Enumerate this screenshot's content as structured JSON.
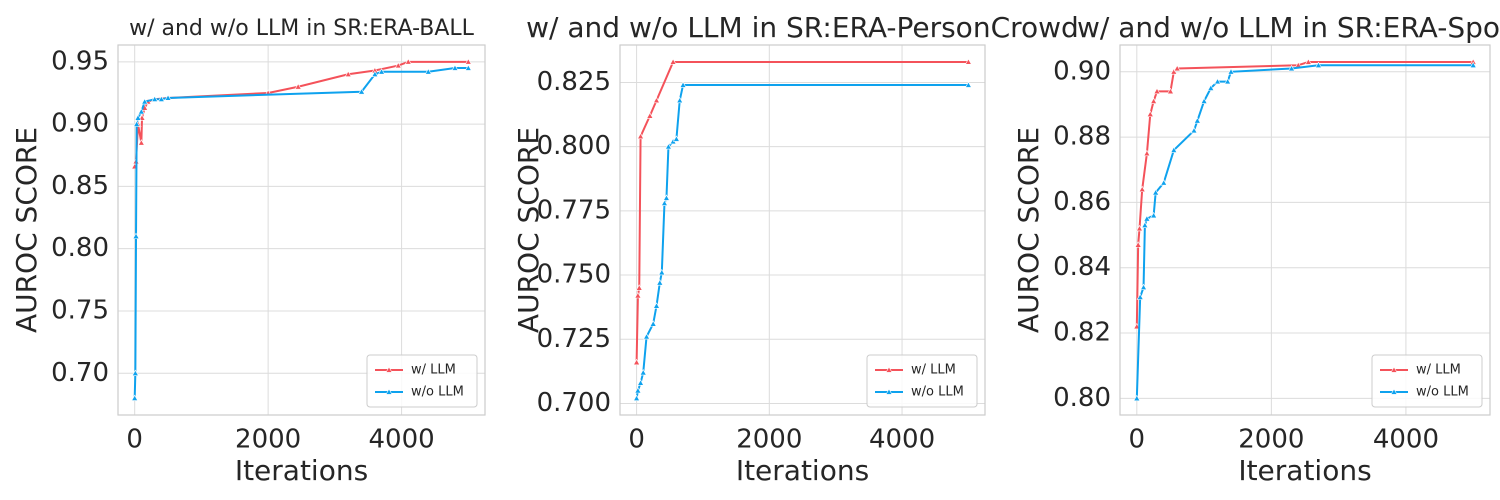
{
  "chart_data": [
    {
      "type": "line",
      "title": "w/ and w/o LLM in SR:ERA-BALL",
      "xlabel": "Iterations",
      "ylabel": "AUROC SCORE",
      "xlim": [
        -250,
        5250
      ],
      "xticks": [
        0,
        2000,
        4000
      ],
      "ylim": [
        0.6665,
        0.9635
      ],
      "yticks": [
        {
          "value": 0.7,
          "label": "0.70"
        },
        0.75,
        {
          "value": 0.8,
          "label": "0.80"
        },
        0.85,
        {
          "value": 0.9,
          "label": "0.90"
        },
        0.95
      ],
      "grid": true,
      "legend": "lower right",
      "series": [
        {
          "name": "w/ LLM",
          "color": "#f4525a",
          "x": [
            0,
            20,
            50,
            100,
            110,
            150,
            200,
            300,
            500,
            2000,
            2450,
            3200,
            3600,
            3950,
            4100,
            5000
          ],
          "values": [
            0.866,
            0.87,
            0.9,
            0.885,
            0.905,
            0.913,
            0.918,
            0.92,
            0.921,
            0.925,
            0.93,
            0.94,
            0.943,
            0.947,
            0.95,
            0.95
          ]
        },
        {
          "name": "w/o LLM",
          "color": "#0ea2ee",
          "x": [
            0,
            10,
            20,
            30,
            50,
            100,
            150,
            300,
            400,
            500,
            3400,
            3600,
            3700,
            4400,
            4800,
            5000
          ],
          "values": [
            0.68,
            0.7,
            0.81,
            0.9,
            0.905,
            0.91,
            0.918,
            0.92,
            0.92,
            0.921,
            0.926,
            0.94,
            0.942,
            0.942,
            0.945,
            0.945
          ]
        }
      ]
    },
    {
      "type": "line",
      "title": "w/ and w/o LLM in SR:ERA-PersonCrowd",
      "xlabel": "Iterations",
      "ylabel": "AUROC SCORE",
      "xlim": [
        -250,
        5250
      ],
      "xticks": [
        0,
        2000,
        4000
      ],
      "ylim": [
        0.6955,
        0.8396
      ],
      "yticks": [
        {
          "value": 0.7,
          "label": "0.700"
        },
        0.725,
        {
          "value": 0.75,
          "label": "0.750"
        },
        0.775,
        {
          "value": 0.8,
          "label": "0.800"
        },
        0.825
      ],
      "grid": true,
      "legend": "lower right",
      "series": [
        {
          "name": "w/ LLM",
          "color": "#f4525a",
          "x": [
            0,
            20,
            40,
            60,
            200,
            300,
            550,
            5000
          ],
          "values": [
            0.716,
            0.742,
            0.745,
            0.804,
            0.812,
            0.818,
            0.833,
            0.833
          ]
        },
        {
          "name": "w/o LLM",
          "color": "#0ea2ee",
          "x": [
            0,
            20,
            60,
            100,
            150,
            250,
            300,
            350,
            380,
            420,
            450,
            480,
            550,
            600,
            650,
            700,
            5000
          ],
          "values": [
            0.702,
            0.705,
            0.708,
            0.712,
            0.726,
            0.731,
            0.738,
            0.747,
            0.751,
            0.778,
            0.78,
            0.8,
            0.802,
            0.803,
            0.818,
            0.824,
            0.824
          ]
        }
      ]
    },
    {
      "type": "line",
      "title": "w/ and w/o LLM in SR:ERA-Spo",
      "xlabel": "Iterations",
      "ylabel": "AUROC SCORE",
      "xlim": [
        -250,
        5250
      ],
      "xticks": [
        0,
        2000,
        4000
      ],
      "ylim": [
        0.7949,
        0.9082
      ],
      "yticks": [
        {
          "value": 0.8,
          "label": "0.80"
        },
        0.82,
        0.84,
        0.86,
        0.88,
        {
          "value": 0.9,
          "label": "0.90"
        }
      ],
      "grid": true,
      "legend": "lower right",
      "series": [
        {
          "name": "w/ LLM",
          "color": "#f4525a",
          "x": [
            0,
            20,
            40,
            80,
            150,
            200,
            250,
            300,
            500,
            550,
            600,
            2400,
            2550,
            5000
          ],
          "values": [
            0.822,
            0.847,
            0.852,
            0.864,
            0.875,
            0.887,
            0.891,
            0.894,
            0.894,
            0.9,
            0.901,
            0.902,
            0.903,
            0.903
          ]
        },
        {
          "name": "w/o LLM",
          "color": "#0ea2ee",
          "x": [
            0,
            50,
            100,
            120,
            150,
            250,
            280,
            400,
            550,
            850,
            900,
            1000,
            1100,
            1200,
            1350,
            1400,
            2300,
            2700,
            5000
          ],
          "values": [
            0.8,
            0.831,
            0.834,
            0.853,
            0.855,
            0.856,
            0.863,
            0.866,
            0.876,
            0.882,
            0.885,
            0.891,
            0.895,
            0.897,
            0.897,
            0.9,
            0.901,
            0.902,
            0.902
          ]
        }
      ]
    }
  ]
}
